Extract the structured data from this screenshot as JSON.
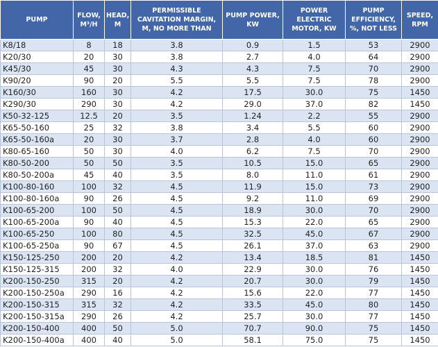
{
  "table": {
    "header": [
      "PUMP",
      "FLOW, M³/H",
      "HEAD, M",
      "PERMISSIBLE CAVITATION MARGIN, M, NO MORE THAN",
      "PUMP POWER, KW",
      "POWER ELECTRIC MOTOR, KW",
      "PUMP EFFICIENCY, %, NOT LESS",
      "SPEED, RPM"
    ],
    "rows": [
      [
        "K8/18",
        "8",
        "18",
        "3.8",
        "0.9",
        "1.5",
        "53",
        "2900"
      ],
      [
        "K20/30",
        "20",
        "30",
        "3.8",
        "2.7",
        "4.0",
        "64",
        "2900"
      ],
      [
        "K45/30",
        "45",
        "30",
        "4.3",
        "4.3",
        "7.5",
        "70",
        "2900"
      ],
      [
        "K90/20",
        "90",
        "20",
        "5.5",
        "5.5",
        "7.5",
        "78",
        "2900"
      ],
      [
        "K160/30",
        "160",
        "30",
        "4.2",
        "17.5",
        "30.0",
        "75",
        "1450"
      ],
      [
        "K290/30",
        "290",
        "30",
        "4.2",
        "29.0",
        "37.0",
        "82",
        "1450"
      ],
      [
        "K50-32-125",
        "12.5",
        "20",
        "3.5",
        "1.24",
        "2.2",
        "55",
        "2900"
      ],
      [
        "K65-50-160",
        "25",
        "32",
        "3.8",
        "3.4",
        "5.5",
        "60",
        "2900"
      ],
      [
        "K65-50-160a",
        "20",
        "30",
        "3.7",
        "2.8",
        "4.0",
        "60",
        "2900"
      ],
      [
        "K80-65-160",
        "50",
        "30",
        "4.0",
        "6.2",
        "7.5",
        "70",
        "2900"
      ],
      [
        "K80-50-200",
        "50",
        "50",
        "3.5",
        "10.5",
        "15.0",
        "65",
        "2900"
      ],
      [
        "K80-50-200a",
        "45",
        "40",
        "3.5",
        "8.0",
        "11.0",
        "61",
        "2900"
      ],
      [
        "K100-80-160",
        "100",
        "32",
        "4.5",
        "11.9",
        "15.0",
        "73",
        "2900"
      ],
      [
        "K100-80-160a",
        "90",
        "26",
        "4.5",
        "9.2",
        "11.0",
        "69",
        "2900"
      ],
      [
        "K100-65-200",
        "100",
        "50",
        "4.5",
        "18.9",
        "30.0",
        "70",
        "2900"
      ],
      [
        "K100-65-200a",
        "90",
        "40",
        "4.5",
        "15.3",
        "22.0",
        "65",
        "2900"
      ],
      [
        "K100-65-250",
        "100",
        "80",
        "4.5",
        "32.5",
        "45.0",
        "67",
        "2900"
      ],
      [
        "K100-65-250a",
        "90",
        "67",
        "4.5",
        "26.1",
        "37.0",
        "63",
        "2900"
      ],
      [
        "K150-125-250",
        "200",
        "20",
        "4.2",
        "13.4",
        "18.5",
        "81",
        "1450"
      ],
      [
        "K150-125-315",
        "200",
        "32",
        "4.0",
        "22.9",
        "30.0",
        "76",
        "1450"
      ],
      [
        "K200-150-250",
        "315",
        "20",
        "4.2",
        "20.7",
        "30.0",
        "79",
        "1450"
      ],
      [
        "K200-150-250a",
        "290",
        "16",
        "4.2",
        "15.6",
        "22.0",
        "77",
        "1450"
      ],
      [
        "K200-150-315",
        "315",
        "32",
        "4.2",
        "33.5",
        "45.0",
        "80",
        "1450"
      ],
      [
        "K200-150-315a",
        "290",
        "26",
        "4.2",
        "25.7",
        "30.0",
        "77",
        "1450"
      ],
      [
        "K200-150-400",
        "400",
        "50",
        "5.0",
        "70.7",
        "90.0",
        "75",
        "1450"
      ],
      [
        "K200-150-400a",
        "400",
        "40",
        "5.0",
        "58.1",
        "75.0",
        "75",
        "1450"
      ]
    ]
  }
}
